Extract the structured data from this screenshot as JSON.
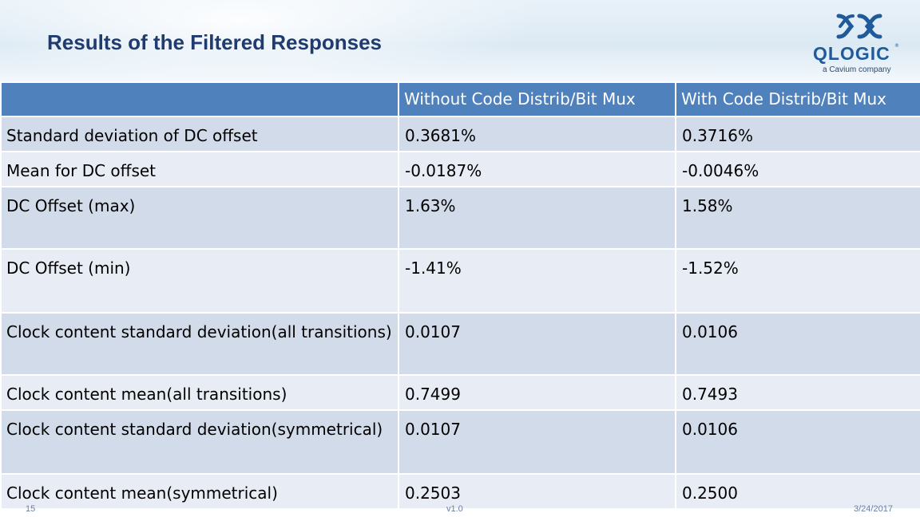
{
  "header": {
    "title": "Results of the Filtered Responses",
    "logo_brand": "QLOGIC",
    "logo_reg": "®",
    "logo_tagline": "a Cavium company"
  },
  "table": {
    "columns": [
      "",
      "Without Code Distrib/Bit Mux",
      "With Code Distrib/Bit Mux"
    ],
    "rows": [
      [
        "Standard deviation of DC offset",
        "0.3681%",
        "0.3716%"
      ],
      [
        "Mean for DC offset",
        "-0.0187%",
        "-0.0046%"
      ],
      [
        "DC Offset (max)",
        "1.63%",
        "1.58%"
      ],
      [
        "DC Offset (min)",
        "-1.41%",
        "-1.52%"
      ],
      [
        "Clock content standard deviation(all transitions)",
        "0.0107",
        "0.0106"
      ],
      [
        "Clock content mean(all transitions)",
        "0.7499",
        "0.7493"
      ],
      [
        "Clock content standard deviation(symmetrical)",
        "0.0107",
        "0.0106"
      ],
      [
        "Clock content mean(symmetrical)",
        "0.2503",
        "0.2500"
      ]
    ]
  },
  "footer": {
    "page_number": "15",
    "version": "v1.0",
    "date": "3/24/2017"
  },
  "colors": {
    "header_fill": "#4f81bd",
    "row_dark": "#d2dbe9",
    "row_light": "#e8edf5",
    "title": "#1f3b6f"
  }
}
